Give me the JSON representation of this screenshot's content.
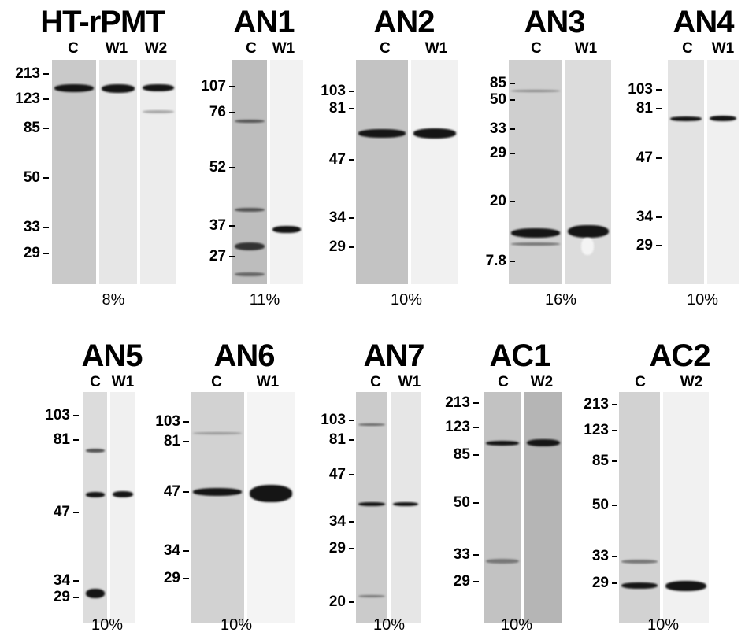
{
  "panels": [
    {
      "id": "ht-rpmt",
      "title": "HT-rPMT",
      "percent": "8%",
      "lanes": [
        {
          "label": "C"
        },
        {
          "label": "W1"
        },
        {
          "label": "W2"
        }
      ],
      "markers": [
        "213",
        "123",
        "85",
        "50",
        "33",
        "29"
      ]
    },
    {
      "id": "an1",
      "title": "AN1",
      "percent": "11%",
      "lanes": [
        {
          "label": "C"
        },
        {
          "label": "W1"
        }
      ],
      "markers": [
        "107",
        "76",
        "52",
        "37",
        "27"
      ]
    },
    {
      "id": "an2",
      "title": "AN2",
      "percent": "10%",
      "lanes": [
        {
          "label": "C"
        },
        {
          "label": "W1"
        }
      ],
      "markers": [
        "103",
        "81",
        "47",
        "34",
        "29"
      ]
    },
    {
      "id": "an3",
      "title": "AN3",
      "percent": "16%",
      "lanes": [
        {
          "label": "C"
        },
        {
          "label": "W1"
        }
      ],
      "markers": [
        "85",
        "50",
        "33",
        "29",
        "20",
        "7.8"
      ]
    },
    {
      "id": "an4",
      "title": "AN4",
      "percent": "10%",
      "lanes": [
        {
          "label": "C"
        },
        {
          "label": "W1"
        }
      ],
      "markers": [
        "103",
        "81",
        "47",
        "34",
        "29"
      ]
    },
    {
      "id": "an5",
      "title": "AN5",
      "percent": "10%",
      "lanes": [
        {
          "label": "C"
        },
        {
          "label": "W1"
        }
      ],
      "markers": [
        "103",
        "81",
        "47",
        "34",
        "29"
      ]
    },
    {
      "id": "an6",
      "title": "AN6",
      "percent": "10%",
      "lanes": [
        {
          "label": "C"
        },
        {
          "label": "W1"
        }
      ],
      "markers": [
        "103",
        "81",
        "47",
        "34",
        "29"
      ]
    },
    {
      "id": "an7",
      "title": "AN7",
      "percent": "10%",
      "lanes": [
        {
          "label": "C"
        },
        {
          "label": "W1"
        }
      ],
      "markers": [
        "103",
        "81",
        "47",
        "34",
        "29",
        "20"
      ]
    },
    {
      "id": "ac1",
      "title": "AC1",
      "percent": "10%",
      "lanes": [
        {
          "label": "C"
        },
        {
          "label": "W2"
        }
      ],
      "markers": [
        "213",
        "123",
        "85",
        "50",
        "33",
        "29"
      ]
    },
    {
      "id": "ac2",
      "title": "AC2",
      "percent": "10%",
      "lanes": [
        {
          "label": "C"
        },
        {
          "label": "W2"
        }
      ],
      "markers": [
        "213",
        "123",
        "85",
        "50",
        "33",
        "29"
      ]
    }
  ]
}
